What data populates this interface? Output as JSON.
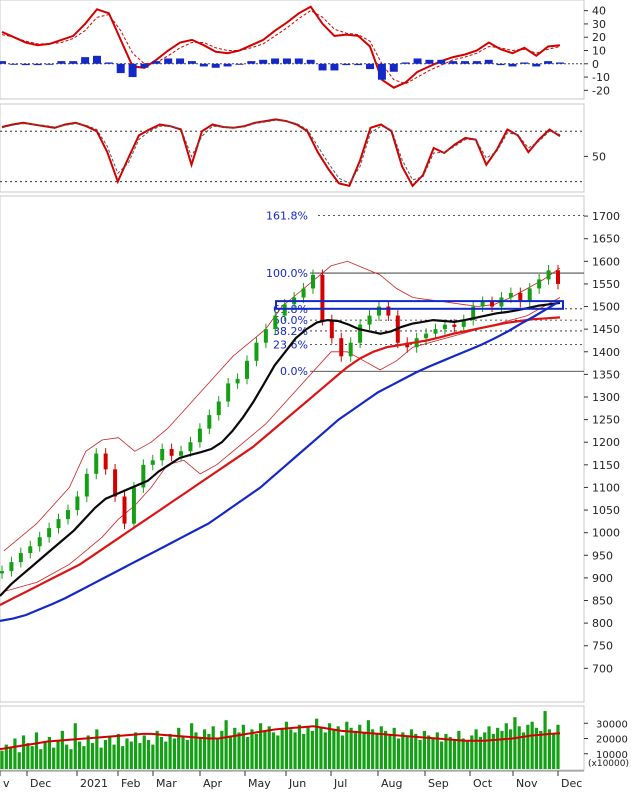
{
  "chart_data": [
    {
      "type": "line",
      "panel": "macd",
      "title": "",
      "y_ticks": [
        40,
        30,
        20,
        10,
        0,
        -10,
        -20
      ],
      "ylim": [
        -25,
        45
      ],
      "series": [
        {
          "color": "#d40000",
          "values": [
            24,
            20,
            16,
            14,
            15,
            18,
            21,
            30,
            41,
            38,
            18,
            -2,
            -3,
            3,
            10,
            16,
            18,
            14,
            9,
            8,
            10,
            14,
            18,
            25,
            31,
            38,
            43,
            30,
            21,
            22,
            21,
            13,
            -12,
            -18,
            -14,
            -6,
            -2,
            2,
            5,
            7,
            10,
            16,
            11,
            8,
            12,
            6,
            13,
            14
          ]
        },
        {
          "color": "#d40000",
          "dashed": true,
          "values": [
            22,
            20,
            17,
            15,
            15,
            16,
            19,
            25,
            35,
            37,
            25,
            8,
            0,
            1,
            6,
            12,
            16,
            16,
            12,
            10,
            10,
            12,
            15,
            21,
            27,
            34,
            40,
            35,
            26,
            23,
            22,
            17,
            0,
            -12,
            -15,
            -10,
            -5,
            -1,
            3,
            5,
            8,
            13,
            12,
            10,
            11,
            8,
            11,
            13
          ]
        },
        {
          "color": "#1428c8",
          "kind": "histogram",
          "values": [
            2,
            0,
            -1,
            -1,
            0,
            2,
            2,
            5,
            6,
            1,
            -7,
            -10,
            -3,
            2,
            4,
            4,
            2,
            -2,
            -3,
            -2,
            0,
            2,
            3,
            4,
            4,
            4,
            3,
            -5,
            -5,
            -1,
            -1,
            -4,
            -12,
            -6,
            1,
            4,
            3,
            3,
            2,
            2,
            2,
            3,
            -1,
            -2,
            1,
            -2,
            2,
            1
          ]
        }
      ]
    },
    {
      "type": "line",
      "panel": "oscillator",
      "title": "",
      "y_ticks": [
        50
      ],
      "ylim": [
        10,
        110
      ],
      "series": [
        {
          "color": "#d40000",
          "values": [
            85,
            88,
            90,
            88,
            86,
            84,
            88,
            90,
            86,
            80,
            55,
            20,
            48,
            75,
            82,
            88,
            86,
            82,
            40,
            80,
            88,
            85,
            84,
            86,
            90,
            92,
            94,
            92,
            88,
            80,
            55,
            35,
            18,
            15,
            45,
            84,
            88,
            80,
            38,
            15,
            28,
            60,
            54,
            64,
            72,
            70,
            40,
            58,
            82,
            75,
            55,
            70,
            82,
            74
          ]
        },
        {
          "color": "#555555",
          "dashed": true,
          "values": [
            84,
            87,
            89,
            88,
            87,
            85,
            87,
            89,
            87,
            82,
            62,
            30,
            42,
            70,
            80,
            86,
            86,
            83,
            50,
            74,
            86,
            85,
            84,
            85,
            89,
            91,
            93,
            92,
            89,
            82,
            62,
            42,
            24,
            18,
            38,
            78,
            86,
            82,
            46,
            22,
            26,
            54,
            55,
            62,
            70,
            70,
            48,
            56,
            78,
            76,
            60,
            68,
            80,
            76
          ]
        }
      ]
    },
    {
      "type": "line",
      "panel": "price",
      "title": "",
      "ylim": [
        630,
        1740
      ],
      "y_ticks": [
        1700,
        1650,
        1600,
        1550,
        1500,
        1450,
        1400,
        1350,
        1300,
        1250,
        1200,
        1150,
        1100,
        1050,
        1000,
        950,
        900,
        850,
        800,
        750,
        700
      ],
      "x_ticks": [
        "v",
        "Dec",
        "2021",
        "Feb",
        "Mar",
        "Apr",
        "May",
        "Jun",
        "Jul",
        "Aug",
        "Sep",
        "Oct",
        "Nov",
        "Dec"
      ],
      "fibonacci": [
        {
          "label": "161.8%",
          "value": 1701
        },
        {
          "label": "100.0%",
          "value": 1574
        },
        {
          "label": "61.8%",
          "value": 1495
        },
        {
          "label": "50.0%",
          "value": 1470
        },
        {
          "label": "38.2%",
          "value": 1446
        },
        {
          "label": "23.6%",
          "value": 1416
        },
        {
          "label": "0.0%",
          "value": 1357
        }
      ],
      "zone": [
        1495,
        1512
      ],
      "series": [
        {
          "kind": "close",
          "values": [
            915,
            935,
            955,
            970,
            990,
            1010,
            1030,
            1050,
            1080,
            1130,
            1175,
            1140,
            1080,
            1020,
            1100,
            1150,
            1160,
            1185,
            1170,
            1180,
            1200,
            1230,
            1260,
            1290,
            1330,
            1340,
            1380,
            1420,
            1450,
            1480,
            1505,
            1520,
            1540,
            1570,
            1470,
            1430,
            1390,
            1420,
            1460,
            1480,
            1500,
            1480,
            1420,
            1410,
            1430,
            1440,
            1450,
            1460,
            1455,
            1470,
            1500,
            1510,
            1500,
            1520,
            1530,
            1510,
            1540,
            1560,
            1580,
            1550
          ]
        },
        {
          "name": "",
          "color": "#0a0a0a",
          "values": [
            860,
            885,
            905,
            925,
            945,
            965,
            985,
            1005,
            1030,
            1055,
            1075,
            1085,
            1095,
            1105,
            1115,
            1135,
            1150,
            1165,
            1172,
            1178,
            1185,
            1200,
            1225,
            1255,
            1290,
            1330,
            1370,
            1400,
            1430,
            1450,
            1465,
            1470,
            1468,
            1460,
            1450,
            1445,
            1440,
            1445,
            1455,
            1462,
            1466,
            1470,
            1468,
            1466,
            1470,
            1475,
            1480,
            1485,
            1488,
            1492,
            1497,
            1502,
            1505,
            1508
          ]
        },
        {
          "name": "",
          "color": "#dc1414",
          "values": [
            840,
            855,
            870,
            885,
            900,
            915,
            930,
            950,
            970,
            990,
            1010,
            1030,
            1050,
            1070,
            1090,
            1110,
            1130,
            1150,
            1170,
            1190,
            1215,
            1240,
            1265,
            1290,
            1315,
            1340,
            1365,
            1385,
            1400,
            1410,
            1415,
            1420,
            1425,
            1432,
            1440,
            1446,
            1452,
            1458,
            1464,
            1468,
            1472,
            1474,
            1476
          ]
        },
        {
          "name": "",
          "color": "#1428c8",
          "values": [
            805,
            810,
            818,
            830,
            842,
            855,
            870,
            885,
            900,
            915,
            930,
            945,
            960,
            975,
            990,
            1005,
            1020,
            1040,
            1060,
            1080,
            1100,
            1125,
            1150,
            1175,
            1200,
            1225,
            1250,
            1270,
            1290,
            1310,
            1325,
            1340,
            1355,
            1368,
            1380,
            1392,
            1404,
            1416,
            1430,
            1445,
            1462,
            1478,
            1495,
            1512
          ]
        },
        {
          "name": "",
          "color": "#cc2222",
          "kind": "band",
          "upper": [
            960,
            990,
            1020,
            1060,
            1100,
            1180,
            1205,
            1210,
            1180,
            1200,
            1230,
            1270,
            1310,
            1350,
            1390,
            1420,
            1450,
            1500,
            1530,
            1560,
            1590,
            1600,
            1585,
            1570,
            1540,
            1520,
            1515,
            1510,
            1505,
            1500,
            1505,
            1520,
            1540,
            1560,
            1585
          ],
          "lower": [
            870,
            880,
            890,
            910,
            930,
            960,
            990,
            1030,
            1060,
            1100,
            1150,
            1160,
            1130,
            1150,
            1180,
            1210,
            1240,
            1280,
            1320,
            1360,
            1400,
            1400,
            1380,
            1360,
            1380,
            1410,
            1420,
            1430,
            1440,
            1450,
            1460,
            1470,
            1480,
            1500,
            1520
          ]
        }
      ]
    },
    {
      "type": "bar",
      "panel": "volume",
      "title": "",
      "y_ticks": [
        30000,
        20000,
        10000
      ],
      "ylim": [
        0,
        40000
      ],
      "unit_label": "(x10000)",
      "moving_average": [
        13000,
        14000,
        15000,
        16000,
        17000,
        18000,
        18500,
        19000,
        19500,
        20000,
        20500,
        21000,
        21500,
        22000,
        22500,
        23000,
        23000,
        22500,
        22000,
        21500,
        21000,
        20500,
        20000,
        20000,
        21000,
        22000,
        23000,
        24000,
        25000,
        26000,
        26500,
        27000,
        27500,
        28000,
        27000,
        26000,
        25000,
        24500,
        24000,
        23500,
        23000,
        22500,
        22000,
        21500,
        21000,
        20500,
        20000,
        19500,
        19000,
        18500,
        18500,
        18500,
        19000,
        19500,
        20000,
        21000,
        22000,
        22500,
        23000,
        23500
      ],
      "values": [
        12000,
        16000,
        14000,
        20000,
        11000,
        22000,
        17000,
        15000,
        24000,
        13000,
        18000,
        21000,
        14000,
        19000,
        25000,
        16000,
        13000,
        30000,
        18000,
        15000,
        22000,
        17000,
        26000,
        14000,
        19000,
        21000,
        16000,
        23000,
        15000,
        20000,
        18000,
        24000,
        17000,
        22000,
        19000,
        16000,
        25000,
        21000,
        18000,
        23000,
        20000,
        27000,
        22000,
        19000,
        30000,
        24000,
        21000,
        26000,
        23000,
        28000,
        20000,
        25000,
        32000,
        22000,
        27000,
        24000,
        29000,
        21000,
        26000,
        23000,
        30000,
        25000,
        28000,
        24000,
        22000,
        27000,
        31000,
        26000,
        24000,
        29000,
        23000,
        28000,
        25000,
        33000,
        27000,
        24000,
        30000,
        26000,
        28000,
        22000,
        31000,
        27000,
        25000,
        29000,
        24000,
        32000,
        26000,
        23000,
        28000,
        25000,
        22000,
        27000,
        20000,
        24000,
        21000,
        26000,
        23000,
        19000,
        25000,
        22000,
        20000,
        24000,
        18000,
        23000,
        21000,
        19000,
        25000,
        20000,
        18000,
        22000,
        26000,
        21000,
        24000,
        28000,
        23000,
        27000,
        25000,
        30000,
        26000,
        34000,
        28000,
        24000,
        29000,
        31000,
        27000,
        25000,
        38000,
        26000,
        23000,
        29000
      ],
      "x_ticks": [
        "v",
        "Dec",
        "2021",
        "Feb",
        "Mar",
        "Apr",
        "May",
        "Jun",
        "Jul",
        "Aug",
        "Sep",
        "Oct",
        "Nov",
        "Dec"
      ]
    }
  ]
}
